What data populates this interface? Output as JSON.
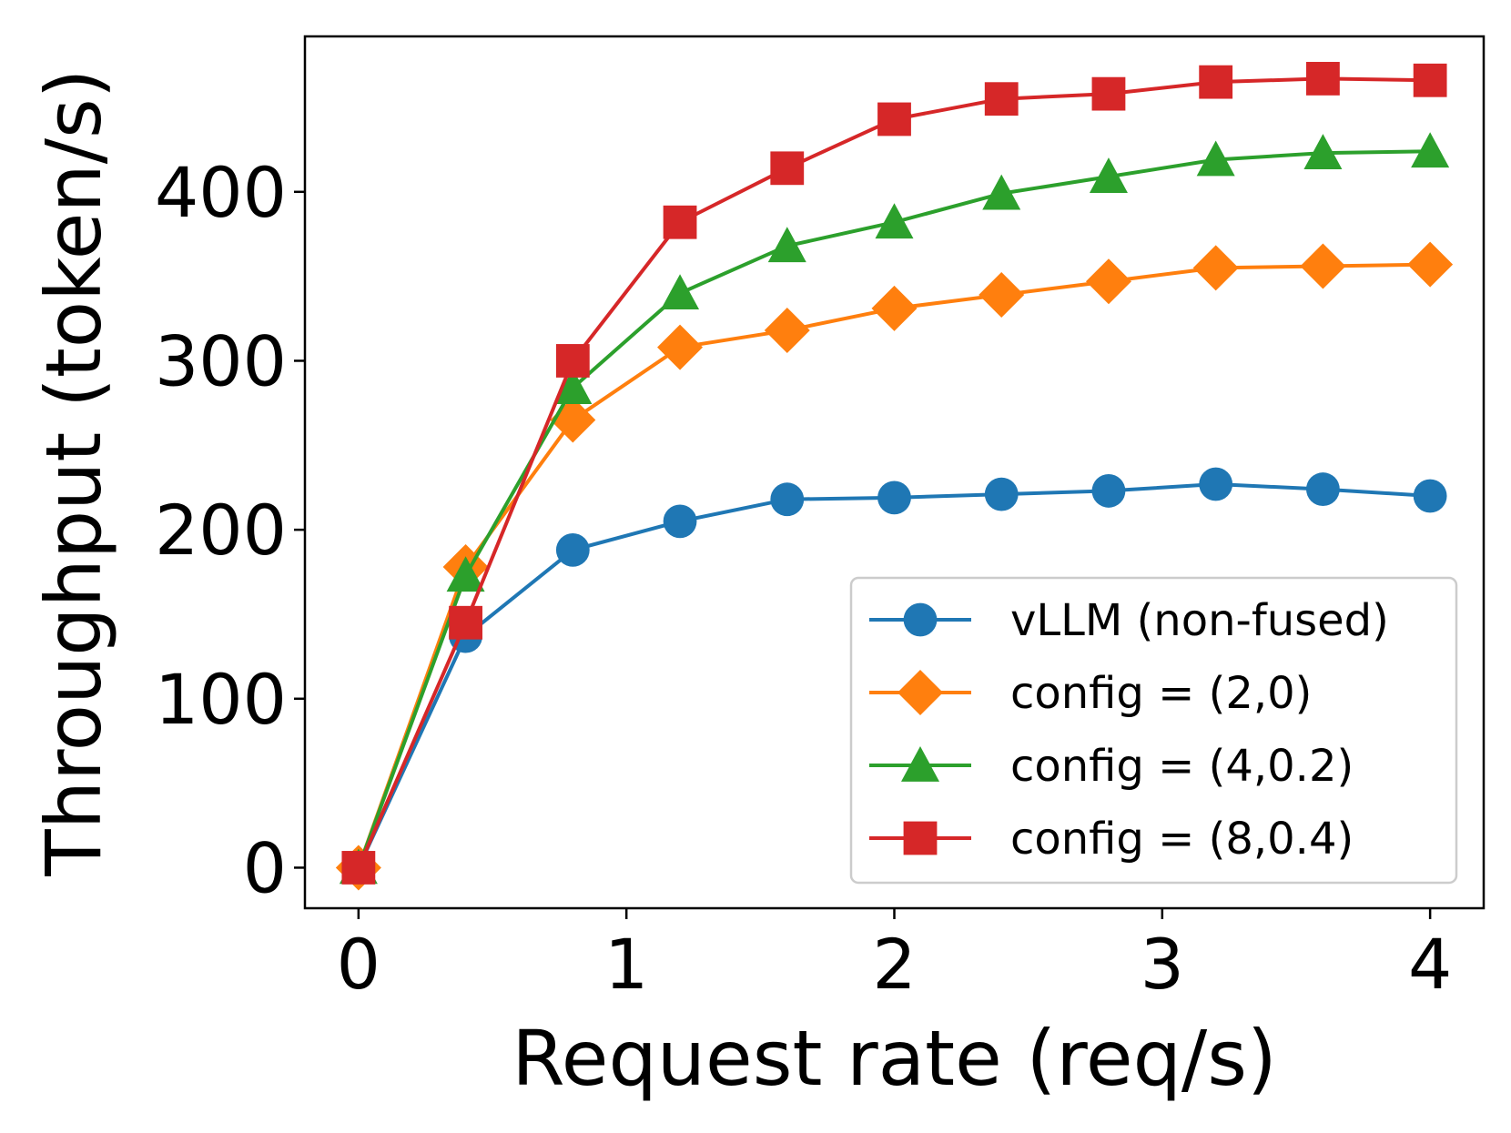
{
  "chart_data": {
    "type": "line",
    "xlabel": "Request rate (req/s)",
    "ylabel": "Throughput (token/s)",
    "xlim": [
      -0.2,
      4.2
    ],
    "ylim": [
      -24,
      492
    ],
    "xticks": [
      0,
      1,
      2,
      3,
      4
    ],
    "yticks": [
      0,
      100,
      200,
      300,
      400
    ],
    "xtick_labels": [
      "0",
      "1",
      "2",
      "3",
      "4"
    ],
    "ytick_labels": [
      "0",
      "100",
      "200",
      "300",
      "400"
    ],
    "legend_position": "lower-right",
    "grid": false,
    "x": [
      0,
      0.4,
      0.8,
      1.2,
      1.6,
      2.0,
      2.4,
      2.8,
      3.2,
      3.6,
      4.0
    ],
    "series": [
      {
        "name": "vLLM (non-fused)",
        "color": "#1f77b4",
        "marker": "circle",
        "values": [
          0,
          137,
          188,
          205,
          218,
          219,
          221,
          223,
          227,
          224,
          220
        ]
      },
      {
        "name": "config = (2,0)",
        "color": "#ff7f0e",
        "marker": "diamond",
        "values": [
          0,
          178,
          265,
          308,
          318,
          331,
          339,
          347,
          355,
          356,
          357
        ]
      },
      {
        "name": "config = (4,0.2)",
        "color": "#2ca02c",
        "marker": "triangle",
        "values": [
          0,
          173,
          284,
          340,
          368,
          382,
          399,
          409,
          419,
          423,
          424
        ]
      },
      {
        "name": "config = (8,0.4)",
        "color": "#d62728",
        "marker": "square",
        "values": [
          0,
          145,
          300,
          382,
          414,
          443,
          455,
          458,
          465,
          467,
          466
        ]
      }
    ]
  }
}
